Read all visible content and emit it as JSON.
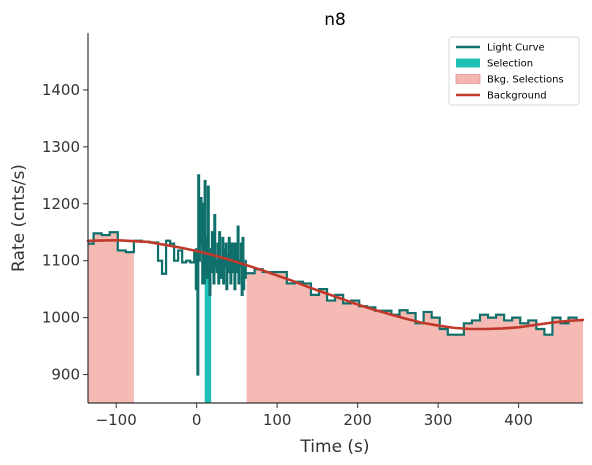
{
  "chart_data": {
    "type": "line",
    "title": "n8",
    "xlabel": "Time (s)",
    "ylabel": "Rate (cnts/s)",
    "xlim": [
      -135,
      480
    ],
    "ylim": [
      850,
      1500
    ],
    "xticks": [
      -100,
      0,
      100,
      200,
      300,
      400
    ],
    "xtick_labels": [
      "−100",
      "0",
      "100",
      "200",
      "300",
      "400"
    ],
    "yticks": [
      900,
      1000,
      1100,
      1200,
      1300,
      1400
    ],
    "ytick_labels": [
      "900",
      "1000",
      "1100",
      "1200",
      "1300",
      "1400"
    ],
    "grid": false,
    "legend_position": "top-right",
    "legend": [
      {
        "label": "Light Curve",
        "kind": "line",
        "color": "#0f6f6a"
      },
      {
        "label": "Selection",
        "kind": "patch",
        "color": "#1fbfb5"
      },
      {
        "label": "Bkg. Selections",
        "kind": "patch",
        "color": "#f4b6b0"
      },
      {
        "label": "Background",
        "kind": "line",
        "color": "#c0392b"
      }
    ],
    "selection": [
      10,
      18
    ],
    "bkg_selections": [
      [
        -135,
        -78
      ],
      [
        62,
        480
      ]
    ],
    "light_curve": {
      "name": "Light Curve",
      "coarse": {
        "edges": [
          -135,
          -128,
          -118,
          -108,
          -98,
          -88,
          -78,
          -68,
          -58,
          -48,
          -43,
          -38,
          -33,
          -28,
          -23,
          -18,
          -13,
          -8,
          -3,
          2
        ],
        "values": [
          1130,
          1148,
          1145,
          1150,
          1118,
          1115,
          1135,
          1133,
          1132,
          1100,
          1077,
          1135,
          1130,
          1100,
          1118,
          1097,
          1100,
          1097,
          1118
        ]
      },
      "fine": {
        "edges": [
          -2,
          -1,
          0,
          1,
          2,
          3,
          4,
          5,
          6,
          7,
          8,
          9,
          10,
          11,
          12,
          13,
          14,
          15,
          16,
          17,
          18,
          19,
          20,
          21,
          22,
          23,
          24,
          25,
          26,
          27,
          28,
          29,
          30,
          31,
          32,
          33,
          34,
          35,
          36,
          37,
          38,
          39,
          40,
          41,
          42,
          43,
          44,
          45,
          46,
          47,
          48,
          49,
          50,
          51,
          52,
          53,
          54,
          55,
          56,
          57,
          58,
          59,
          60,
          61,
          62
        ],
        "values": [
          1050,
          1120,
          1080,
          900,
          1250,
          1100,
          1180,
          1210,
          1130,
          1060,
          1200,
          1060,
          1240,
          1140,
          1090,
          1070,
          1230,
          1100,
          1040,
          1120,
          1080,
          1150,
          1110,
          1060,
          1180,
          1100,
          1090,
          1080,
          1130,
          1060,
          1150,
          1090,
          1070,
          1100,
          1140,
          1060,
          1120,
          1090,
          1130,
          1050,
          1110,
          1080,
          1140,
          1100,
          1060,
          1130,
          1080,
          1090,
          1130,
          1050,
          1110,
          1130,
          1080,
          1160,
          1060,
          1090,
          1100,
          1130,
          1040,
          1140,
          1050,
          1090,
          1070,
          1100
        ]
      },
      "tail": {
        "edges": [
          62,
          72,
          82,
          92,
          102,
          112,
          122,
          132,
          142,
          152,
          162,
          172,
          182,
          192,
          202,
          212,
          222,
          232,
          242,
          252,
          262,
          272,
          282,
          292,
          302,
          312,
          322,
          332,
          342,
          352,
          362,
          372,
          382,
          392,
          402,
          412,
          422,
          432,
          442,
          452,
          462,
          472,
          480
        ],
        "values": [
          1078,
          1085,
          1080,
          1080,
          1080,
          1060,
          1063,
          1060,
          1040,
          1050,
          1030,
          1040,
          1025,
          1030,
          1020,
          1018,
          1012,
          1012,
          1005,
          1013,
          1008,
          990,
          1010,
          1000,
          980,
          970,
          970,
          990,
          995,
          1005,
          1000,
          1005,
          995,
          1000,
          990,
          995,
          980,
          970,
          1000,
          990,
          1000,
          995
        ]
      }
    },
    "background": {
      "name": "Background",
      "x": [
        -135,
        -100,
        -60,
        -20,
        0,
        20,
        40,
        60,
        80,
        100,
        120,
        140,
        160,
        180,
        200,
        220,
        240,
        260,
        280,
        300,
        320,
        340,
        360,
        380,
        400,
        420,
        440,
        460,
        480
      ],
      "y": [
        1135,
        1136,
        1133,
        1123,
        1117,
        1110,
        1102,
        1093,
        1084,
        1074,
        1064,
        1053,
        1043,
        1033,
        1023,
        1014,
        1006,
        998,
        991,
        986,
        982,
        980,
        980,
        981,
        983,
        987,
        991,
        994,
        996
      ]
    }
  }
}
